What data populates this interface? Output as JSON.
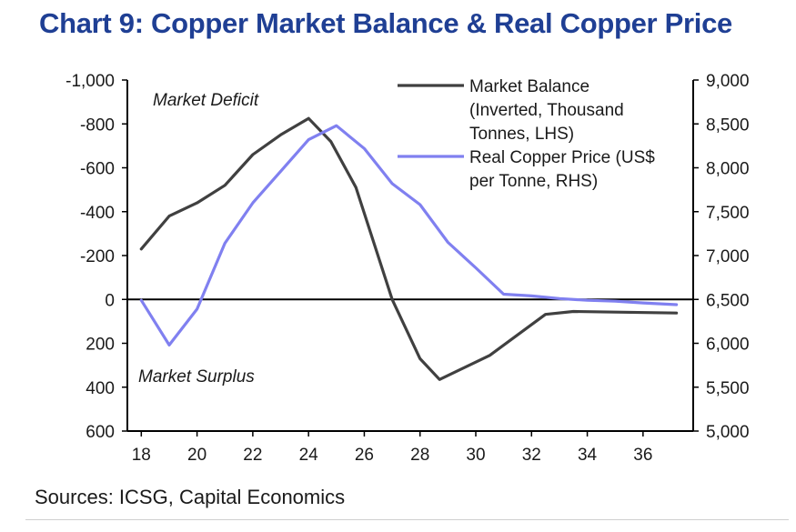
{
  "title": "Chart 9: Copper Market Balance & Real Copper Price",
  "source": "Sources: ICSG, Capital Economics",
  "annotations": {
    "deficit": "Market Deficit",
    "surplus": "Market Surplus"
  },
  "colors": {
    "title": "#1f3f94",
    "balance": "#404040",
    "price": "#8080f0",
    "axis": "#000000"
  },
  "chart_data": {
    "type": "line",
    "x_ticks": [
      "18",
      "20",
      "22",
      "24",
      "26",
      "28",
      "30",
      "32",
      "34",
      "36"
    ],
    "x_tick_values": [
      2018,
      2020,
      2022,
      2024,
      2026,
      2028,
      2030,
      2032,
      2034,
      2036
    ],
    "xlim": [
      2017.5,
      2037.8
    ],
    "left_axis": {
      "ylim": [
        -1000,
        600
      ],
      "inverted": true,
      "ticks": [
        "-1,000",
        "-800",
        "-600",
        "-400",
        "-200",
        "0",
        "200",
        "400",
        "600"
      ],
      "tick_values": [
        -1000,
        -800,
        -600,
        -400,
        -200,
        0,
        200,
        400,
        600
      ]
    },
    "right_axis": {
      "ylim": [
        5000,
        9000
      ],
      "ticks": [
        "9,000",
        "8,500",
        "8,000",
        "7,500",
        "7,000",
        "6,500",
        "6,000",
        "5,500",
        "5,000"
      ],
      "tick_values": [
        9000,
        8500,
        8000,
        7500,
        7000,
        6500,
        6000,
        5500,
        5000
      ]
    },
    "zero_line": 0,
    "legend_position": "top-right",
    "series": [
      {
        "name": "Market Balance (Inverted, Thousand Tonnes, LHS)",
        "legend_lines": [
          "Market Balance",
          "(Inverted, Thousand",
          "Tonnes, LHS)"
        ],
        "axis": "left",
        "color": "#404040",
        "points": [
          [
            2018,
            -230
          ],
          [
            2019,
            -380
          ],
          [
            2020,
            -440
          ],
          [
            2021,
            -520
          ],
          [
            2022,
            -660
          ],
          [
            2023,
            -750
          ],
          [
            2024,
            -825
          ],
          [
            2024.8,
            -720
          ],
          [
            2025.7,
            -510
          ],
          [
            2027,
            0
          ],
          [
            2028,
            270
          ],
          [
            2028.7,
            365
          ],
          [
            2030.5,
            255
          ],
          [
            2032.5,
            68
          ],
          [
            2033.5,
            55
          ],
          [
            2035,
            58
          ],
          [
            2037.2,
            62
          ]
        ]
      },
      {
        "name": "Real Copper Price (US$ per Tonne, RHS)",
        "legend_lines": [
          "Real Copper Price (US$",
          "per Tonne, RHS)"
        ],
        "axis": "right",
        "color": "#8080f0",
        "points": [
          [
            2018,
            6490
          ],
          [
            2019,
            5980
          ],
          [
            2020,
            6390
          ],
          [
            2021,
            7140
          ],
          [
            2022,
            7600
          ],
          [
            2023,
            7960
          ],
          [
            2024,
            8320
          ],
          [
            2025,
            8480
          ],
          [
            2026,
            8220
          ],
          [
            2027,
            7820
          ],
          [
            2028,
            7580
          ],
          [
            2029,
            7150
          ],
          [
            2030,
            6860
          ],
          [
            2031,
            6560
          ],
          [
            2032,
            6540
          ],
          [
            2033,
            6510
          ],
          [
            2034,
            6490
          ],
          [
            2035,
            6480
          ],
          [
            2036,
            6460
          ],
          [
            2037.2,
            6440
          ]
        ]
      }
    ]
  }
}
